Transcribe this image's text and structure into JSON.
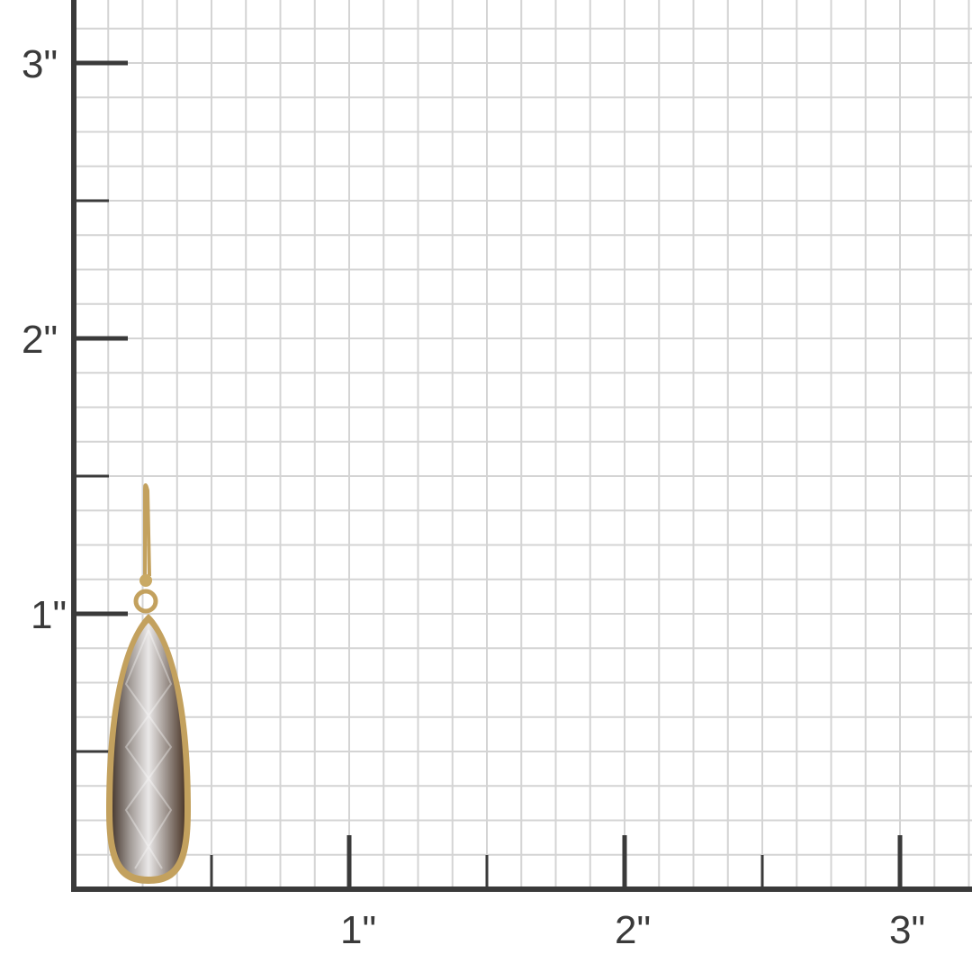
{
  "ruler": {
    "unit_label_suffix": "\"",
    "x_labels": [
      "1\"",
      "2\"",
      "3\""
    ],
    "y_labels": [
      "1\"",
      "2\"",
      "3\""
    ],
    "grid_divisions_per_inch": 8,
    "axis_color": "#3a3a3a",
    "grid_color": "#d4d4d4"
  },
  "product": {
    "icon": "teardrop-gemstone-earring",
    "stone_color": "#8a7f78",
    "metal_color": "#c3a15e"
  }
}
